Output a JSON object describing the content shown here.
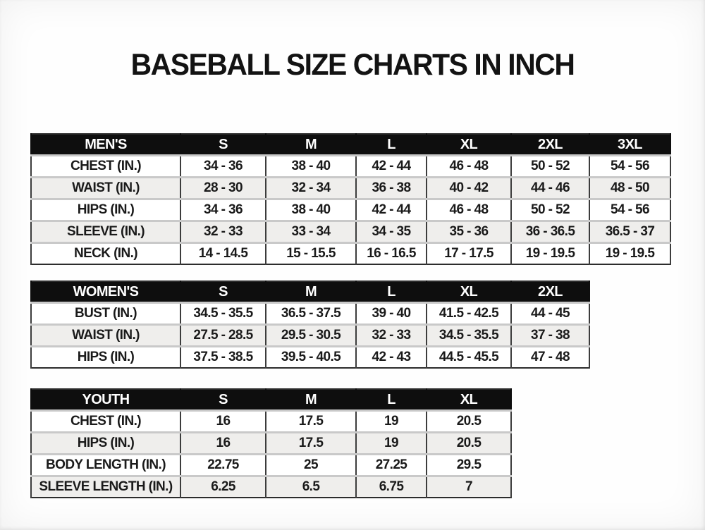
{
  "title": "BASEBALL SIZE CHARTS IN INCH",
  "colors": {
    "header_bg": "#0e0e0e",
    "header_text": "#ffffff",
    "row_bg": "#ffffff",
    "row_alt_bg": "#efeeec",
    "text": "#1a1a1a",
    "vertical_grid": "#3c3c3c",
    "row_separator": "#c9c9c9"
  },
  "chart_data": [
    {
      "type": "table",
      "name": "mens",
      "title": "MEN'S",
      "header": [
        "MEN'S",
        "S",
        "M",
        "L",
        "XL",
        "2XL",
        "3XL"
      ],
      "rows": [
        [
          "CHEST (IN.)",
          "34 - 36",
          "38 - 40",
          "42 - 44",
          "46 - 48",
          "50 - 52",
          "54 - 56"
        ],
        [
          "WAIST (IN.)",
          "28 - 30",
          "32 - 34",
          "36 - 38",
          "40 - 42",
          "44 - 46",
          "48 - 50"
        ],
        [
          "HIPS (IN.)",
          "34 - 36",
          "38 - 40",
          "42 - 44",
          "46 - 48",
          "50 - 52",
          "54 - 56"
        ],
        [
          "SLEEVE (IN.)",
          "32 - 33",
          "33 - 34",
          "34 - 35",
          "35 - 36",
          "36 - 36.5",
          "36.5 - 37"
        ],
        [
          "NECK (IN.)",
          "14 - 14.5",
          "15 - 15.5",
          "16 - 16.5",
          "17 - 17.5",
          "19 - 19.5",
          "19 - 19.5"
        ]
      ]
    },
    {
      "type": "table",
      "name": "womens",
      "title": "WOMEN'S",
      "header": [
        "WOMEN'S",
        "S",
        "M",
        "L",
        "XL",
        "2XL"
      ],
      "rows": [
        [
          "BUST (IN.)",
          "34.5 - 35.5",
          "36.5 - 37.5",
          "39 - 40",
          "41.5 - 42.5",
          "44 - 45"
        ],
        [
          "WAIST (IN.)",
          "27.5 - 28.5",
          "29.5 - 30.5",
          "32 - 33",
          "34.5 - 35.5",
          "37 - 38"
        ],
        [
          "HIPS (IN.)",
          "37.5 - 38.5",
          "39.5 - 40.5",
          "42 - 43",
          "44.5 - 45.5",
          "47 - 48"
        ]
      ]
    },
    {
      "type": "table",
      "name": "youth",
      "title": "YOUTH",
      "header": [
        "YOUTH",
        "S",
        "M",
        "L",
        "XL"
      ],
      "rows": [
        [
          "CHEST (IN.)",
          "16",
          "17.5",
          "19",
          "20.5"
        ],
        [
          "HIPS (IN.)",
          "16",
          "17.5",
          "19",
          "20.5"
        ],
        [
          "BODY LENGTH (IN.)",
          "22.75",
          "25",
          "27.25",
          "29.5"
        ],
        [
          "SLEEVE LENGTH (IN.)",
          "6.25",
          "6.5",
          "6.75",
          "7"
        ]
      ]
    }
  ]
}
